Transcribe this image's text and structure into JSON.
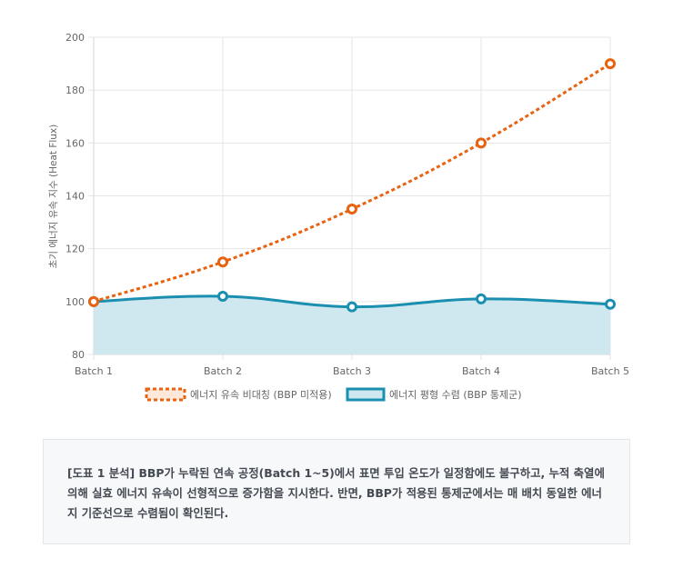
{
  "chart_data": {
    "type": "line",
    "categories": [
      "Batch 1",
      "Batch 2",
      "Batch 3",
      "Batch 4",
      "Batch 5"
    ],
    "ylabel": "초기 에너지 유속 지수 (Heat Flux)",
    "ylim": [
      80,
      200
    ],
    "yticks": [
      80,
      100,
      120,
      140,
      160,
      180,
      200
    ],
    "grid": true,
    "legend_position": "bottom",
    "series": [
      {
        "name": "에너지 유속 비대칭 (BBP 미적용)",
        "values": [
          100,
          115,
          135,
          160,
          190
        ],
        "color": "#e8620f",
        "style": "dashed",
        "fill": false
      },
      {
        "name": "에너지 평형 수렴 (BBP 통제군)",
        "values": [
          100,
          102,
          98,
          101,
          99
        ],
        "color": "#1b8fb0",
        "style": "solid",
        "fill": true,
        "fill_color": "#cfe8ef"
      }
    ]
  },
  "note": {
    "text": "[도표 1 분석] BBP가 누락된 연속 공정(Batch 1~5)에서 표면 투입 온도가 일정함에도 불구하고, 누적 축열에 의해 실효 에너지 유속이 선형적으로 증가함을 지시한다. 반면, BBP가 적용된 통제군에서는 매 배치 동일한 에너지 기준선으로 수렴됨이 확인된다."
  }
}
